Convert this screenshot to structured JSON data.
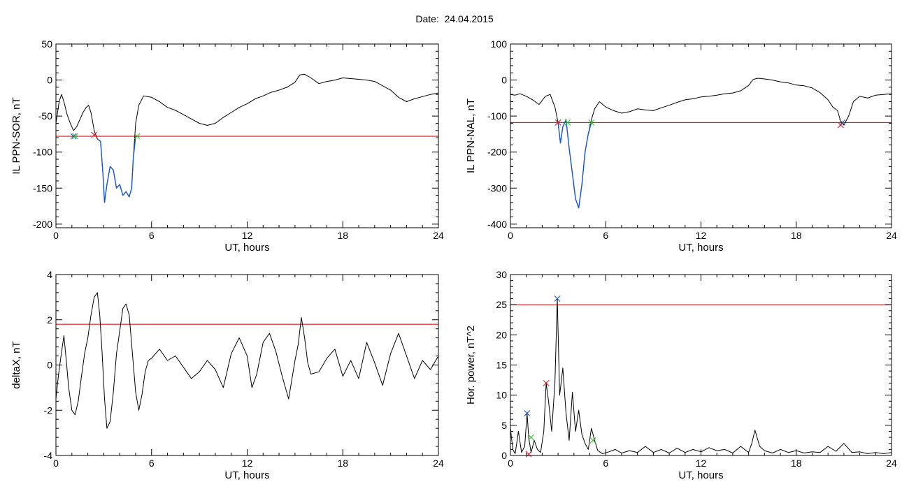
{
  "page": {
    "title": "Date:  24.04.2015"
  },
  "chart_data": [
    {
      "type": "line",
      "id": "p1",
      "xlabel": "UT, hours",
      "ylabel": "IL PPN-SOR, nT",
      "xlim": [
        0,
        24
      ],
      "ylim": [
        -205,
        50
      ],
      "xticks": [
        0,
        6,
        12,
        18,
        24
      ],
      "yticks": [
        -200,
        -150,
        -100,
        -50,
        0,
        50
      ],
      "threshold": {
        "value": -78,
        "color": "#e8141e"
      },
      "series": [
        {
          "color": "#000000",
          "x": [
            0,
            0.1,
            0.2,
            0.35,
            0.5,
            0.7,
            0.9,
            1.1,
            1.3,
            1.5,
            1.7,
            1.9,
            2.05,
            2.2,
            2.4,
            2.6,
            2.8,
            2.95,
            3.05,
            3.2,
            3.4,
            3.6,
            3.8,
            4.0,
            4.2,
            4.4,
            4.6,
            4.75,
            4.85,
            5.0,
            5.2,
            5.5,
            6.0,
            6.5,
            7.0,
            7.5,
            8.0,
            8.5,
            9.0,
            9.5,
            10.0,
            10.5,
            11.0,
            11.5,
            12.0,
            12.5,
            13.0,
            13.5,
            14.0,
            14.5,
            15.0,
            15.3,
            15.6,
            16.0,
            16.5,
            17.0,
            17.5,
            18.0,
            18.5,
            19.0,
            19.5,
            20.0,
            20.5,
            21.0,
            21.5,
            22.0,
            22.5,
            23.0,
            23.5,
            24.0
          ],
          "y": [
            -60,
            -45,
            -30,
            -20,
            -30,
            -48,
            -60,
            -70,
            -65,
            -55,
            -45,
            -38,
            -35,
            -45,
            -70,
            -82,
            -85,
            -130,
            -170,
            -145,
            -120,
            -125,
            -150,
            -145,
            -160,
            -155,
            -162,
            -150,
            -110,
            -60,
            -35,
            -22,
            -24,
            -30,
            -38,
            -42,
            -48,
            -54,
            -60,
            -63,
            -60,
            -52,
            -45,
            -38,
            -33,
            -26,
            -22,
            -17,
            -14,
            -10,
            -3,
            7,
            8,
            3,
            -5,
            -2,
            0,
            3,
            2,
            1,
            0,
            -2,
            -8,
            -14,
            -24,
            -30,
            -26,
            -23,
            -20,
            -18
          ]
        },
        {
          "color": "#1c56c6",
          "x": [
            2.6,
            2.8,
            2.95,
            3.05,
            3.2,
            3.4,
            3.6,
            3.8,
            4.0,
            4.2,
            4.4,
            4.6,
            4.75,
            4.85,
            5.0
          ],
          "y": [
            -82,
            -85,
            -130,
            -170,
            -145,
            -120,
            -125,
            -150,
            -145,
            -160,
            -155,
            -162,
            -150,
            -110,
            -78
          ]
        }
      ],
      "markers": [
        {
          "x": 1.1,
          "y": -78,
          "color": "#1c56c6"
        },
        {
          "x": 1.2,
          "y": -78,
          "color": "#2fc22f"
        },
        {
          "x": 2.4,
          "y": -76,
          "color": "#e8141e"
        },
        {
          "x": 5.1,
          "y": -78,
          "color": "#2fc22f"
        }
      ]
    },
    {
      "type": "line",
      "id": "p2",
      "xlabel": "UT, hours",
      "ylabel": "IL PPN-NAL, nT",
      "xlim": [
        0,
        24
      ],
      "ylim": [
        -410,
        100
      ],
      "xticks": [
        0,
        6,
        12,
        18,
        24
      ],
      "yticks": [
        -400,
        -300,
        -200,
        -100,
        0,
        100
      ],
      "threshold": {
        "value": -118,
        "color": "#e8141e"
      },
      "series": [
        {
          "color": "#000000",
          "x": [
            0,
            0.3,
            0.6,
            1.0,
            1.4,
            1.8,
            2.2,
            2.5,
            2.8,
            3.0,
            3.15,
            3.3,
            3.5,
            3.7,
            3.9,
            4.1,
            4.3,
            4.5,
            4.7,
            4.9,
            5.1,
            5.3,
            5.6,
            6.0,
            6.5,
            7.0,
            7.5,
            8.0,
            8.5,
            9.0,
            9.5,
            10.0,
            10.5,
            11.0,
            11.5,
            12.0,
            12.5,
            13.0,
            13.5,
            14.0,
            14.5,
            15.0,
            15.3,
            15.6,
            16.0,
            16.5,
            17.0,
            17.5,
            18.0,
            18.5,
            19.0,
            19.5,
            20.0,
            20.3,
            20.6,
            20.8,
            21.0,
            21.3,
            21.6,
            22.0,
            22.5,
            23.0,
            23.5,
            24.0
          ],
          "y": [
            -40,
            -42,
            -38,
            -45,
            -55,
            -68,
            -45,
            -40,
            -75,
            -118,
            -175,
            -130,
            -110,
            -190,
            -260,
            -330,
            -355,
            -290,
            -200,
            -150,
            -110,
            -80,
            -60,
            -75,
            -85,
            -92,
            -88,
            -80,
            -83,
            -85,
            -77,
            -70,
            -62,
            -55,
            -52,
            -47,
            -45,
            -42,
            -38,
            -36,
            -30,
            -15,
            2,
            5,
            3,
            0,
            -5,
            -8,
            -14,
            -16,
            -22,
            -35,
            -55,
            -75,
            -85,
            -115,
            -125,
            -100,
            -60,
            -45,
            -50,
            -42,
            -40,
            -38
          ]
        },
        {
          "color": "#1c56c6",
          "x": [
            3.0,
            3.15,
            3.3,
            3.5,
            3.7,
            3.9,
            4.1,
            4.3,
            4.5,
            4.7,
            4.9,
            5.1
          ],
          "y": [
            -118,
            -175,
            -130,
            -110,
            -190,
            -260,
            -330,
            -355,
            -290,
            -200,
            -150,
            -118
          ]
        }
      ],
      "markers": [
        {
          "x": 3.0,
          "y": -118,
          "color": "#e8141e"
        },
        {
          "x": 3.6,
          "y": -118,
          "color": "#2fc22f"
        },
        {
          "x": 5.1,
          "y": -118,
          "color": "#2fc22f"
        },
        {
          "x": 20.8,
          "y": -125,
          "color": "#e8141e"
        },
        {
          "x": 20.9,
          "y": -118,
          "color": "#1c56c6"
        }
      ]
    },
    {
      "type": "line",
      "id": "p3",
      "xlabel": "UT, hours",
      "ylabel": "deltaX, nT",
      "xlim": [
        0,
        24
      ],
      "ylim": [
        -4,
        4
      ],
      "xticks": [
        0,
        6,
        12,
        18,
        24
      ],
      "yticks": [
        -4,
        -2,
        0,
        2,
        4
      ],
      "threshold": {
        "value": 1.8,
        "color": "#e8141e"
      },
      "series": [
        {
          "color": "#000000",
          "x": [
            0,
            0.15,
            0.3,
            0.5,
            0.65,
            0.8,
            1.0,
            1.2,
            1.4,
            1.6,
            1.8,
            2.0,
            2.2,
            2.4,
            2.6,
            2.75,
            2.9,
            3.05,
            3.2,
            3.4,
            3.6,
            3.8,
            4.0,
            4.2,
            4.4,
            4.6,
            4.8,
            5.0,
            5.2,
            5.4,
            5.6,
            5.8,
            6.0,
            6.5,
            7.0,
            7.5,
            8.0,
            8.5,
            9.0,
            9.5,
            10.0,
            10.5,
            11.0,
            11.5,
            12.0,
            12.3,
            12.6,
            13.0,
            13.4,
            13.8,
            14.2,
            14.6,
            15.0,
            15.2,
            15.4,
            15.6,
            15.8,
            16.0,
            16.5,
            17.0,
            17.5,
            18.0,
            18.5,
            19.0,
            19.5,
            20.0,
            20.5,
            21.0,
            21.5,
            22.0,
            22.5,
            23.0,
            23.5,
            24.0
          ],
          "y": [
            -1.5,
            -0.5,
            0.3,
            1.3,
            0.2,
            -1.0,
            -2.0,
            -2.2,
            -1.6,
            -0.5,
            0.5,
            1.2,
            2.2,
            3.0,
            3.2,
            2.2,
            0.5,
            -1.5,
            -2.8,
            -2.5,
            -1.2,
            0.5,
            1.5,
            2.5,
            2.7,
            2.2,
            0.5,
            -1.2,
            -2.0,
            -1.3,
            -0.3,
            0.2,
            0.3,
            0.7,
            0.2,
            0.4,
            -0.1,
            -0.6,
            -0.3,
            0.2,
            -0.2,
            -1.0,
            0.5,
            1.2,
            0.4,
            -1.0,
            -0.4,
            1.0,
            1.4,
            0.6,
            -0.5,
            -1.5,
            0.2,
            0.9,
            2.1,
            1.2,
            0.1,
            -0.4,
            -0.3,
            0.3,
            0.7,
            -0.5,
            0.2,
            -0.6,
            1.0,
            0.1,
            -0.9,
            0.5,
            1.4,
            0.4,
            -0.6,
            0.2,
            -0.2,
            0.4
          ]
        }
      ],
      "markers": []
    },
    {
      "type": "line",
      "id": "p4",
      "xlabel": "UT, hours",
      "ylabel": "Hor. power, nT^2",
      "xlim": [
        0,
        24
      ],
      "ylim": [
        0,
        30
      ],
      "xticks": [
        0,
        6,
        12,
        18,
        24
      ],
      "yticks": [
        0,
        5,
        10,
        15,
        20,
        25,
        30
      ],
      "threshold": {
        "value": 25,
        "color": "#e8141e"
      },
      "series": [
        {
          "color": "#000000",
          "x": [
            0,
            0.15,
            0.3,
            0.5,
            0.7,
            0.9,
            1.05,
            1.15,
            1.3,
            1.5,
            1.7,
            1.9,
            2.1,
            2.25,
            2.4,
            2.6,
            2.8,
            2.95,
            3.1,
            3.3,
            3.5,
            3.7,
            3.9,
            4.1,
            4.3,
            4.5,
            4.7,
            4.9,
            5.1,
            5.3,
            5.5,
            5.8,
            6.2,
            6.6,
            7.0,
            7.5,
            8.0,
            8.5,
            9.0,
            9.5,
            10.0,
            10.5,
            11.0,
            11.5,
            12.0,
            12.5,
            13.0,
            13.5,
            14.0,
            14.5,
            15.0,
            15.2,
            15.4,
            15.7,
            16.0,
            16.5,
            17.0,
            17.5,
            18.0,
            18.5,
            19.0,
            19.5,
            20.0,
            20.5,
            21.0,
            21.5,
            22.0,
            22.5,
            23.0,
            23.5,
            24.0
          ],
          "y": [
            4.5,
            1.0,
            0.3,
            4.0,
            0.5,
            1.5,
            7.0,
            3.0,
            0.5,
            2.5,
            1.0,
            0.5,
            4.0,
            12.0,
            9.0,
            4.0,
            12.0,
            26.0,
            10.0,
            14.5,
            7.0,
            2.5,
            10.5,
            4.0,
            7.5,
            3.5,
            2.0,
            1.0,
            4.5,
            2.5,
            0.8,
            0.3,
            0.6,
            1.0,
            0.4,
            0.8,
            0.5,
            1.5,
            0.5,
            1.0,
            0.4,
            1.2,
            0.5,
            1.0,
            0.6,
            1.3,
            0.8,
            1.0,
            0.4,
            1.5,
            0.5,
            2.0,
            4.2,
            1.5,
            0.8,
            0.4,
            1.0,
            0.5,
            0.8,
            0.4,
            0.6,
            0.5,
            1.5,
            0.7,
            2.0,
            0.5,
            0.6,
            0.3,
            0.5,
            0.3,
            0.5
          ]
        }
      ],
      "markers": [
        {
          "x": 1.05,
          "y": 7.0,
          "color": "#1c56c6"
        },
        {
          "x": 1.15,
          "y": 0.2,
          "color": "#e8141e"
        },
        {
          "x": 1.3,
          "y": 3.0,
          "color": "#2fc22f"
        },
        {
          "x": 2.25,
          "y": 12.0,
          "color": "#e8141e"
        },
        {
          "x": 2.95,
          "y": 26.0,
          "color": "#1c56c6"
        },
        {
          "x": 5.2,
          "y": 2.5,
          "color": "#2fc22f"
        }
      ]
    }
  ]
}
